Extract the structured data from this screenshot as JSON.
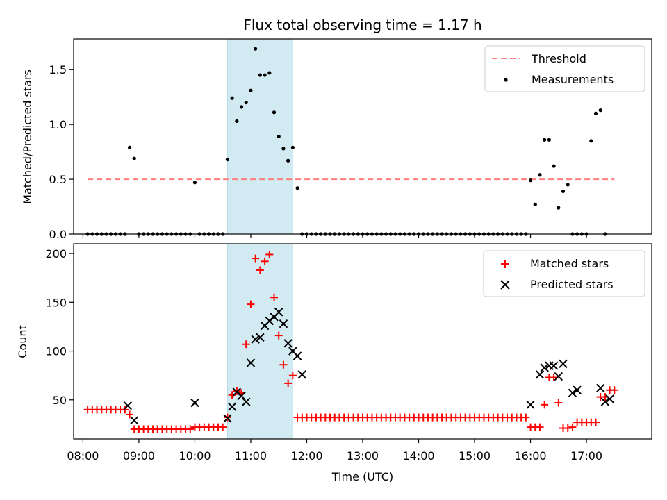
{
  "chart_data": [
    {
      "type": "scatter",
      "title": "Flux total observing time = 1.17 h",
      "ylabel": "Matched/Predicted stars",
      "ylim": [
        0,
        1.78
      ],
      "yticks": [
        "0.0",
        "0.5",
        "1.0",
        "1.5"
      ],
      "xlim": [
        "07:50",
        "18:10"
      ],
      "highlight_span": [
        "10:35",
        "11:45"
      ],
      "highlight_color": "#add8e6",
      "legend_position": "upper right",
      "threshold": {
        "name": "Threshold",
        "value": 0.5,
        "x_range": [
          "08:05",
          "17:30"
        ],
        "color": "#ff7f7f"
      },
      "series": [
        {
          "name": "Measurements",
          "color": "#000000",
          "points": [
            [
              "08:05",
              0
            ],
            [
              "08:10",
              0
            ],
            [
              "08:15",
              0
            ],
            [
              "08:20",
              0
            ],
            [
              "08:25",
              0
            ],
            [
              "08:30",
              0
            ],
            [
              "08:35",
              0
            ],
            [
              "08:40",
              0
            ],
            [
              "08:45",
              0
            ],
            [
              "08:50",
              0.79
            ],
            [
              "08:55",
              0.69
            ],
            [
              "09:00",
              0
            ],
            [
              "09:05",
              0
            ],
            [
              "09:10",
              0
            ],
            [
              "09:15",
              0
            ],
            [
              "09:20",
              0
            ],
            [
              "09:25",
              0
            ],
            [
              "09:30",
              0
            ],
            [
              "09:35",
              0
            ],
            [
              "09:40",
              0
            ],
            [
              "09:45",
              0
            ],
            [
              "09:50",
              0
            ],
            [
              "09:55",
              0
            ],
            [
              "10:00",
              0.47
            ],
            [
              "10:05",
              0
            ],
            [
              "10:10",
              0
            ],
            [
              "10:15",
              0
            ],
            [
              "10:20",
              0
            ],
            [
              "10:25",
              0
            ],
            [
              "10:30",
              0
            ],
            [
              "10:35",
              0.68
            ],
            [
              "10:40",
              1.24
            ],
            [
              "10:45",
              1.03
            ],
            [
              "10:50",
              1.16
            ],
            [
              "10:55",
              1.2
            ],
            [
              "11:00",
              1.31
            ],
            [
              "11:05",
              1.69
            ],
            [
              "11:10",
              1.45
            ],
            [
              "11:15",
              1.45
            ],
            [
              "11:20",
              1.47
            ],
            [
              "11:25",
              1.11
            ],
            [
              "11:30",
              0.89
            ],
            [
              "11:35",
              0.78
            ],
            [
              "11:40",
              0.67
            ],
            [
              "11:45",
              0.79
            ],
            [
              "11:50",
              0.42
            ],
            [
              "11:55",
              0
            ],
            [
              "12:00",
              0
            ],
            [
              "12:05",
              0
            ],
            [
              "12:10",
              0
            ],
            [
              "12:15",
              0
            ],
            [
              "12:20",
              0
            ],
            [
              "12:25",
              0
            ],
            [
              "12:30",
              0
            ],
            [
              "12:35",
              0
            ],
            [
              "12:40",
              0
            ],
            [
              "12:45",
              0
            ],
            [
              "12:50",
              0
            ],
            [
              "12:55",
              0
            ],
            [
              "13:00",
              0
            ],
            [
              "13:05",
              0
            ],
            [
              "13:10",
              0
            ],
            [
              "13:15",
              0
            ],
            [
              "13:20",
              0
            ],
            [
              "13:25",
              0
            ],
            [
              "13:30",
              0
            ],
            [
              "13:35",
              0
            ],
            [
              "13:40",
              0
            ],
            [
              "13:45",
              0
            ],
            [
              "13:50",
              0
            ],
            [
              "13:55",
              0
            ],
            [
              "14:00",
              0
            ],
            [
              "14:05",
              0
            ],
            [
              "14:10",
              0
            ],
            [
              "14:15",
              0
            ],
            [
              "14:20",
              0
            ],
            [
              "14:25",
              0
            ],
            [
              "14:30",
              0
            ],
            [
              "14:35",
              0
            ],
            [
              "14:40",
              0
            ],
            [
              "14:45",
              0
            ],
            [
              "14:50",
              0
            ],
            [
              "14:55",
              0
            ],
            [
              "15:00",
              0
            ],
            [
              "15:05",
              0
            ],
            [
              "15:10",
              0
            ],
            [
              "15:15",
              0
            ],
            [
              "15:20",
              0
            ],
            [
              "15:25",
              0
            ],
            [
              "15:30",
              0
            ],
            [
              "15:35",
              0
            ],
            [
              "15:40",
              0
            ],
            [
              "15:45",
              0
            ],
            [
              "15:50",
              0
            ],
            [
              "15:55",
              0
            ],
            [
              "16:00",
              0.49
            ],
            [
              "16:05",
              0.27
            ],
            [
              "16:10",
              0.54
            ],
            [
              "16:15",
              0.86
            ],
            [
              "16:20",
              0.86
            ],
            [
              "16:25",
              0.62
            ],
            [
              "16:30",
              0.24
            ],
            [
              "16:35",
              0.39
            ],
            [
              "16:40",
              0.45
            ],
            [
              "16:45",
              0
            ],
            [
              "16:50",
              0
            ],
            [
              "16:55",
              0
            ],
            [
              "17:00",
              0
            ],
            [
              "17:05",
              0.85
            ],
            [
              "17:10",
              1.1
            ],
            [
              "17:15",
              1.13
            ],
            [
              "17:20",
              0
            ]
          ]
        }
      ]
    },
    {
      "type": "scatter",
      "xlabel": "Time (UTC)",
      "ylabel": "Count",
      "ylim": [
        10,
        210
      ],
      "yticks": [
        "50",
        "100",
        "150",
        "200"
      ],
      "xlim": [
        "07:50",
        "18:10"
      ],
      "xticks": [
        "08:00",
        "09:00",
        "10:00",
        "11:00",
        "12:00",
        "13:00",
        "14:00",
        "15:00",
        "16:00",
        "17:00"
      ],
      "highlight_span": [
        "10:35",
        "11:45"
      ],
      "highlight_color": "#add8e6",
      "legend_position": "upper right",
      "series": [
        {
          "name": "Matched stars",
          "marker": "+",
          "color": "#ff0000",
          "points": [
            [
              "08:05",
              40
            ],
            [
              "08:10",
              40
            ],
            [
              "08:15",
              40
            ],
            [
              "08:20",
              40
            ],
            [
              "08:25",
              40
            ],
            [
              "08:30",
              40
            ],
            [
              "08:35",
              40
            ],
            [
              "08:40",
              40
            ],
            [
              "08:45",
              40
            ],
            [
              "08:50",
              35
            ],
            [
              "08:55",
              20
            ],
            [
              "09:00",
              20
            ],
            [
              "09:05",
              20
            ],
            [
              "09:10",
              20
            ],
            [
              "09:15",
              20
            ],
            [
              "09:20",
              20
            ],
            [
              "09:25",
              20
            ],
            [
              "09:30",
              20
            ],
            [
              "09:35",
              20
            ],
            [
              "09:40",
              20
            ],
            [
              "09:45",
              20
            ],
            [
              "09:50",
              20
            ],
            [
              "09:55",
              20
            ],
            [
              "10:00",
              22
            ],
            [
              "10:05",
              22
            ],
            [
              "10:10",
              22
            ],
            [
              "10:15",
              22
            ],
            [
              "10:20",
              22
            ],
            [
              "10:25",
              22
            ],
            [
              "10:30",
              22
            ],
            [
              "10:35",
              32
            ],
            [
              "10:40",
              55
            ],
            [
              "10:45",
              59
            ],
            [
              "10:50",
              57
            ],
            [
              "10:55",
              107
            ],
            [
              "11:00",
              148
            ],
            [
              "11:05",
              195
            ],
            [
              "11:10",
              183
            ],
            [
              "11:15",
              192
            ],
            [
              "11:20",
              199
            ],
            [
              "11:25",
              155
            ],
            [
              "11:30",
              116
            ],
            [
              "11:35",
              86
            ],
            [
              "11:40",
              67
            ],
            [
              "11:45",
              75
            ],
            [
              "11:50",
              32
            ],
            [
              "11:55",
              32
            ],
            [
              "12:00",
              32
            ],
            [
              "12:05",
              32
            ],
            [
              "12:10",
              32
            ],
            [
              "12:15",
              32
            ],
            [
              "12:20",
              32
            ],
            [
              "12:25",
              32
            ],
            [
              "12:30",
              32
            ],
            [
              "12:35",
              32
            ],
            [
              "12:40",
              32
            ],
            [
              "12:45",
              32
            ],
            [
              "12:50",
              32
            ],
            [
              "12:55",
              32
            ],
            [
              "13:00",
              32
            ],
            [
              "13:05",
              32
            ],
            [
              "13:10",
              32
            ],
            [
              "13:15",
              32
            ],
            [
              "13:20",
              32
            ],
            [
              "13:25",
              32
            ],
            [
              "13:30",
              32
            ],
            [
              "13:35",
              32
            ],
            [
              "13:40",
              32
            ],
            [
              "13:45",
              32
            ],
            [
              "13:50",
              32
            ],
            [
              "13:55",
              32
            ],
            [
              "14:00",
              32
            ],
            [
              "14:05",
              32
            ],
            [
              "14:10",
              32
            ],
            [
              "14:15",
              32
            ],
            [
              "14:20",
              32
            ],
            [
              "14:25",
              32
            ],
            [
              "14:30",
              32
            ],
            [
              "14:35",
              32
            ],
            [
              "14:40",
              32
            ],
            [
              "14:45",
              32
            ],
            [
              "14:50",
              32
            ],
            [
              "14:55",
              32
            ],
            [
              "15:00",
              32
            ],
            [
              "15:05",
              32
            ],
            [
              "15:10",
              32
            ],
            [
              "15:15",
              32
            ],
            [
              "15:20",
              32
            ],
            [
              "15:25",
              32
            ],
            [
              "15:30",
              32
            ],
            [
              "15:35",
              32
            ],
            [
              "15:40",
              32
            ],
            [
              "15:45",
              32
            ],
            [
              "15:50",
              32
            ],
            [
              "15:55",
              32
            ],
            [
              "16:00",
              22
            ],
            [
              "16:05",
              22
            ],
            [
              "16:10",
              22
            ],
            [
              "16:15",
              45
            ],
            [
              "16:20",
              73
            ],
            [
              "16:25",
              73
            ],
            [
              "16:30",
              47
            ],
            [
              "16:35",
              21
            ],
            [
              "16:40",
              21
            ],
            [
              "16:45",
              22
            ],
            [
              "16:50",
              27
            ],
            [
              "16:55",
              27
            ],
            [
              "17:00",
              27
            ],
            [
              "17:05",
              27
            ],
            [
              "17:10",
              27
            ],
            [
              "17:15",
              53
            ],
            [
              "17:20",
              53
            ],
            [
              "17:25",
              60
            ],
            [
              "17:30",
              60
            ]
          ]
        },
        {
          "name": "Predicted stars",
          "marker": "x",
          "color": "#000000",
          "points": [
            [
              "08:48",
              44
            ],
            [
              "08:55",
              29
            ],
            [
              "10:00",
              47
            ],
            [
              "10:35",
              31
            ],
            [
              "10:40",
              43
            ],
            [
              "10:45",
              58
            ],
            [
              "10:50",
              54
            ],
            [
              "10:55",
              48
            ],
            [
              "11:00",
              88
            ],
            [
              "11:05",
              112
            ],
            [
              "11:10",
              114
            ],
            [
              "11:15",
              126
            ],
            [
              "11:20",
              131
            ],
            [
              "11:25",
              135
            ],
            [
              "11:30",
              140
            ],
            [
              "11:35",
              128
            ],
            [
              "11:40",
              108
            ],
            [
              "11:45",
              100
            ],
            [
              "11:50",
              95
            ],
            [
              "11:55",
              76
            ],
            [
              "16:00",
              45
            ],
            [
              "16:10",
              76
            ],
            [
              "16:15",
              83
            ],
            [
              "16:20",
              85
            ],
            [
              "16:25",
              85
            ],
            [
              "16:30",
              74
            ],
            [
              "16:35",
              87
            ],
            [
              "16:45",
              57
            ],
            [
              "16:50",
              60
            ],
            [
              "17:15",
              62
            ],
            [
              "17:20",
              48
            ],
            [
              "17:25",
              51
            ]
          ]
        }
      ]
    }
  ]
}
